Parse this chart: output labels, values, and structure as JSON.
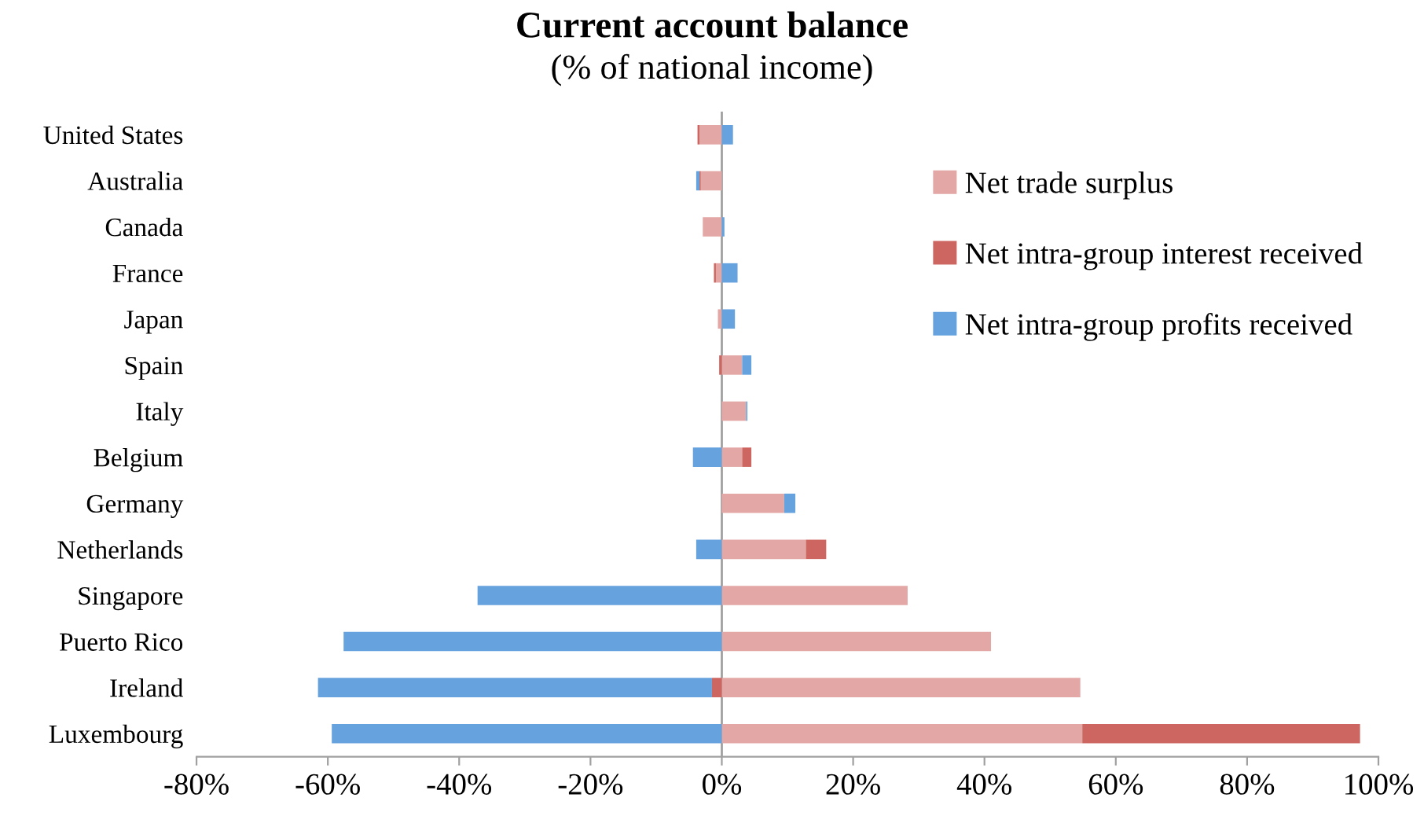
{
  "chart_data": {
    "type": "bar",
    "orientation": "horizontal",
    "stacked": true,
    "title": "Current account balance",
    "subtitle": "(% of national income)",
    "categories": [
      "United States",
      "Australia",
      "Canada",
      "France",
      "Japan",
      "Spain",
      "Italy",
      "Belgium",
      "Germany",
      "Netherlands",
      "Singapore",
      "Puerto Rico",
      "Ireland",
      "Luxembourg"
    ],
    "series": [
      {
        "name": "Net trade surplus",
        "color": "#e3a8a6",
        "values": [
          -3.4,
          -3.2,
          -2.9,
          -0.9,
          -0.6,
          3.1,
          3.7,
          3.1,
          9.5,
          12.8,
          28.3,
          41.0,
          54.6,
          54.9
        ]
      },
      {
        "name": "Net intra-group interest received",
        "color": "#cd6660",
        "values": [
          -0.3,
          -0.2,
          0,
          -0.3,
          0,
          -0.4,
          0,
          1.4,
          0,
          3.1,
          0,
          0,
          -1.5,
          42.3
        ]
      },
      {
        "name": "Net intra-group profits received",
        "color": "#66a2dd",
        "values": [
          1.7,
          -0.5,
          0.4,
          2.4,
          2.0,
          1.4,
          0.2,
          -4.4,
          1.7,
          -3.9,
          -37.2,
          -57.6,
          -60.0,
          -59.4
        ]
      }
    ],
    "xlim": [
      -80,
      100
    ],
    "xticks": [
      {
        "value": -80,
        "label": "-80%"
      },
      {
        "value": -60,
        "label": "-60%"
      },
      {
        "value": -40,
        "label": "-40%"
      },
      {
        "value": -20,
        "label": "-20%"
      },
      {
        "value": 0,
        "label": "0%"
      },
      {
        "value": 20,
        "label": "20%"
      },
      {
        "value": 40,
        "label": "40%"
      },
      {
        "value": 60,
        "label": "60%"
      },
      {
        "value": 80,
        "label": "80%"
      },
      {
        "value": 100,
        "label": "100%"
      }
    ],
    "ref_lines": [
      {
        "axis": "x",
        "value": 0,
        "color": "#a0a0a0"
      }
    ],
    "legend": "top right",
    "grid": false
  }
}
